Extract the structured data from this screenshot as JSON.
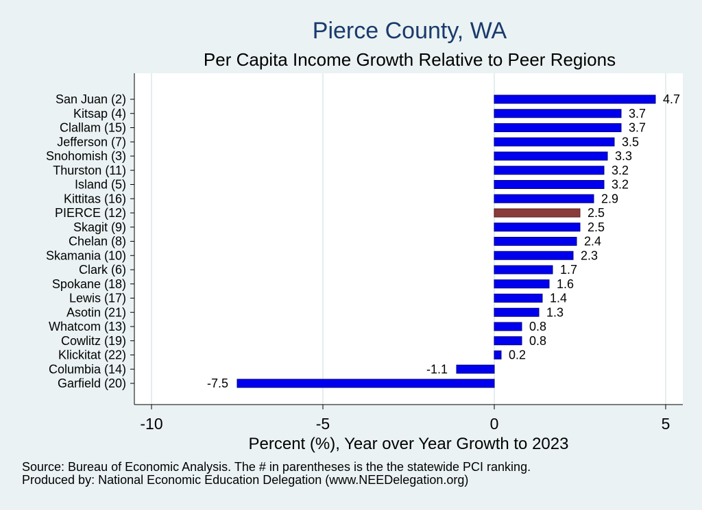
{
  "title": "Pierce County, WA",
  "subtitle": "Per Capita Income Growth Relative to Peer Regions",
  "footer": {
    "source": "Source: Bureau of Economic Analysis. The # in parentheses is the the statewide PCI ranking.",
    "produced": "Produced by: National Economic Education Delegation (www.NEEDelegation.org)"
  },
  "colors": {
    "background": "#eaf2f3",
    "plot_background": "#ffffff",
    "bar": "#0000ee",
    "highlight": "#8b3a3a",
    "title": "#1a3a6b"
  },
  "chart_data": {
    "type": "bar",
    "orientation": "horizontal",
    "title": "Pierce County, WA",
    "subtitle": "Per Capita Income Growth Relative to Peer Regions",
    "xlabel": "Percent (%), Year over Year Growth to 2023",
    "ylabel": "",
    "xlim": [
      -10.5,
      5.5
    ],
    "xticks": [
      -10,
      -5,
      0,
      5
    ],
    "grid": "vertical",
    "highlight_category": "PIERCE (12)",
    "categories": [
      "San Juan  (2)",
      "Kitsap  (4)",
      "Clallam (15)",
      "Jefferson  (7)",
      "Snohomish  (3)",
      "Thurston (11)",
      "Island  (5)",
      "Kittitas (16)",
      "PIERCE (12)",
      "Skagit  (9)",
      "Chelan  (8)",
      "Skamania (10)",
      "Clark  (6)",
      "Spokane (18)",
      "Lewis (17)",
      "Asotin (21)",
      "Whatcom (13)",
      "Cowlitz (19)",
      "Klickitat (22)",
      "Columbia (14)",
      "Garfield (20)"
    ],
    "values": [
      4.7,
      3.7,
      3.7,
      3.5,
      3.3,
      3.2,
      3.2,
      2.9,
      2.5,
      2.5,
      2.4,
      2.3,
      1.7,
      1.6,
      1.4,
      1.3,
      0.8,
      0.8,
      0.2,
      -1.1,
      -7.5
    ],
    "labels": [
      "4.7",
      "3.7",
      "3.7",
      "3.5",
      "3.3",
      "3.2",
      "3.2",
      "2.9",
      "2.5",
      "2.5",
      "2.4",
      "2.3",
      "1.7",
      "1.6",
      "1.4",
      "1.3",
      "0.8",
      "0.8",
      "0.2",
      "-1.1",
      "-7.5"
    ]
  }
}
